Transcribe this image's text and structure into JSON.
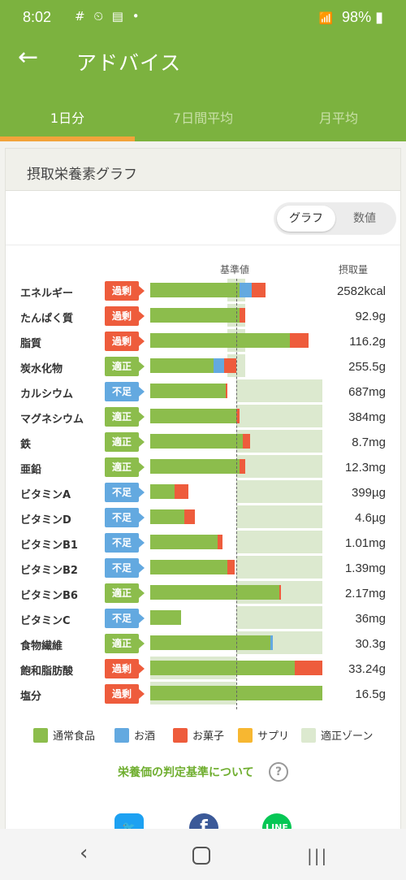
{
  "status_bar": {
    "time": "8:02",
    "icons": "# ⏲ ▤ •",
    "battery": "98%"
  },
  "app_bar": {
    "title": "アドバイス"
  },
  "tabs": [
    {
      "label": "1日分",
      "active": true
    },
    {
      "label": "7日間平均",
      "active": false
    },
    {
      "label": "月平均",
      "active": false
    }
  ],
  "card": {
    "title": "摂取栄養素グラフ",
    "toggle": {
      "graph": "グラフ",
      "numbers": "数値",
      "selected": "グラフ"
    },
    "col_reference": "基準値",
    "col_intake": "摂取量",
    "badge_labels": {
      "over": "過剰",
      "ok": "適正",
      "low": "不足"
    }
  },
  "colors": {
    "food": "#8cbd4c",
    "alcohol": "#63a9e0",
    "snack": "#ee5c3c",
    "supplement": "#f7b731",
    "zone": "#dce9cf",
    "accent": "#7cb23f"
  },
  "chart_data": {
    "type": "bar",
    "reference_fraction": 0.5,
    "rows": [
      {
        "name": "エネルギー",
        "status": "over",
        "value": "2582kcal",
        "zone": [
          0.45,
          0.55
        ],
        "food": 0.52,
        "alcohol": 0.07,
        "snack": 0.08
      },
      {
        "name": "たんぱく質",
        "status": "over",
        "value": "92.9g",
        "zone": [
          0.45,
          0.55
        ],
        "food": 0.52,
        "alcohol": 0,
        "snack": 0.03
      },
      {
        "name": "脂質",
        "status": "over",
        "value": "116.2g",
        "zone": [
          0.45,
          0.55
        ],
        "food": 0.81,
        "alcohol": 0,
        "snack": 0.11
      },
      {
        "name": "炭水化物",
        "status": "ok",
        "value": "255.5g",
        "zone": [
          0.45,
          0.55
        ],
        "food": 0.37,
        "alcohol": 0.06,
        "snack": 0.07
      },
      {
        "name": "カルシウム",
        "status": "low",
        "value": "687mg",
        "zone": [
          0.5,
          1.0
        ],
        "food": 0.44,
        "alcohol": 0,
        "snack": 0.01
      },
      {
        "name": "マグネシウム",
        "status": "ok",
        "value": "384mg",
        "zone": [
          0.5,
          1.0
        ],
        "food": 0.5,
        "alcohol": 0,
        "snack": 0.02
      },
      {
        "name": "鉄",
        "status": "ok",
        "value": "8.7mg",
        "zone": [
          0.5,
          1.0
        ],
        "food": 0.54,
        "alcohol": 0,
        "snack": 0.04
      },
      {
        "name": "亜鉛",
        "status": "ok",
        "value": "12.3mg",
        "zone": [
          0.5,
          1.0
        ],
        "food": 0.52,
        "alcohol": 0,
        "snack": 0.03
      },
      {
        "name": "ビタミンA",
        "status": "low",
        "value": "399µg",
        "zone": [
          0.5,
          1.0
        ],
        "food": 0.14,
        "alcohol": 0,
        "snack": 0.08
      },
      {
        "name": "ビタミンD",
        "status": "low",
        "value": "4.6µg",
        "zone": [
          0.5,
          1.0
        ],
        "food": 0.2,
        "alcohol": 0,
        "snack": 0.06
      },
      {
        "name": "ビタミンB1",
        "status": "low",
        "value": "1.01mg",
        "zone": [
          0.5,
          1.0
        ],
        "food": 0.39,
        "alcohol": 0,
        "snack": 0.03
      },
      {
        "name": "ビタミンB2",
        "status": "low",
        "value": "1.39mg",
        "zone": [
          0.5,
          1.0
        ],
        "food": 0.45,
        "alcohol": 0,
        "snack": 0.04
      },
      {
        "name": "ビタミンB6",
        "status": "ok",
        "value": "2.17mg",
        "zone": [
          0.5,
          1.0
        ],
        "food": 0.75,
        "alcohol": 0,
        "snack": 0.01
      },
      {
        "name": "ビタミンC",
        "status": "low",
        "value": "36mg",
        "zone": [
          0.5,
          1.0
        ],
        "food": 0.18,
        "alcohol": 0,
        "snack": 0
      },
      {
        "name": "食物繊維",
        "status": "ok",
        "value": "30.3g",
        "zone": [
          0.5,
          1.0
        ],
        "food": 0.7,
        "alcohol": 0.01,
        "snack": 0
      },
      {
        "name": "飽和脂肪酸",
        "status": "over",
        "value": "33.24g",
        "zone": [
          0.0,
          0.5
        ],
        "food": 0.84,
        "alcohol": 0,
        "snack": 0.16
      },
      {
        "name": "塩分",
        "status": "over",
        "value": "16.5g",
        "zone": [
          0.0,
          0.5
        ],
        "food": 1.0,
        "alcohol": 0,
        "snack": 0
      }
    ]
  },
  "legend": [
    {
      "label": "通常食品",
      "color": "#8cbd4c"
    },
    {
      "label": "お酒",
      "color": "#63a9e0"
    },
    {
      "label": "お菓子",
      "color": "#ee5c3c"
    },
    {
      "label": "サプリ",
      "color": "#f7b731"
    },
    {
      "label": "適正ゾーン",
      "color": "#dce9cf"
    }
  ],
  "criteria_link": "栄養価の判定基準について",
  "help_icon": "?",
  "share": [
    {
      "name": "twitter-icon"
    },
    {
      "name": "facebook-icon"
    },
    {
      "name": "line-icon"
    }
  ]
}
